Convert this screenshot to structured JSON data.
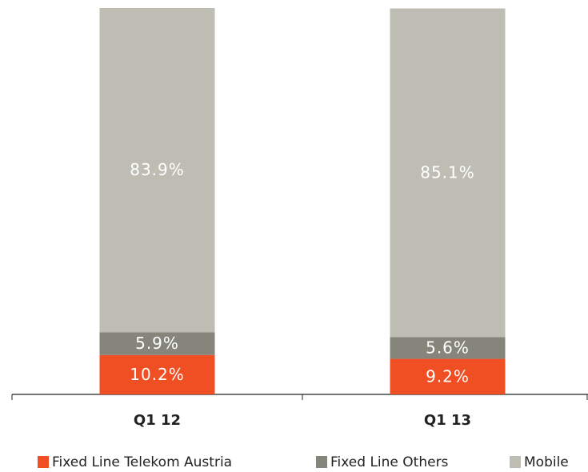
{
  "chart_data": {
    "type": "stacked_bar",
    "categories": [
      "Q1 12",
      "Q1 13"
    ],
    "series": [
      {
        "name": "Fixed Line Telekom Austria",
        "color": "#f04e23",
        "values": [
          10.2,
          9.2
        ],
        "value_labels": [
          "10.2%",
          "9.2%"
        ]
      },
      {
        "name": "Fixed Line Others",
        "color": "#85857b",
        "values": [
          5.9,
          5.6
        ],
        "value_labels": [
          "5.9%",
          "5.6%"
        ]
      },
      {
        "name": "Mobile",
        "color": "#bebdb3",
        "values": [
          83.9,
          85.1
        ],
        "value_labels": [
          "83.9%",
          "85.1%"
        ]
      }
    ],
    "legend": "bottom"
  }
}
